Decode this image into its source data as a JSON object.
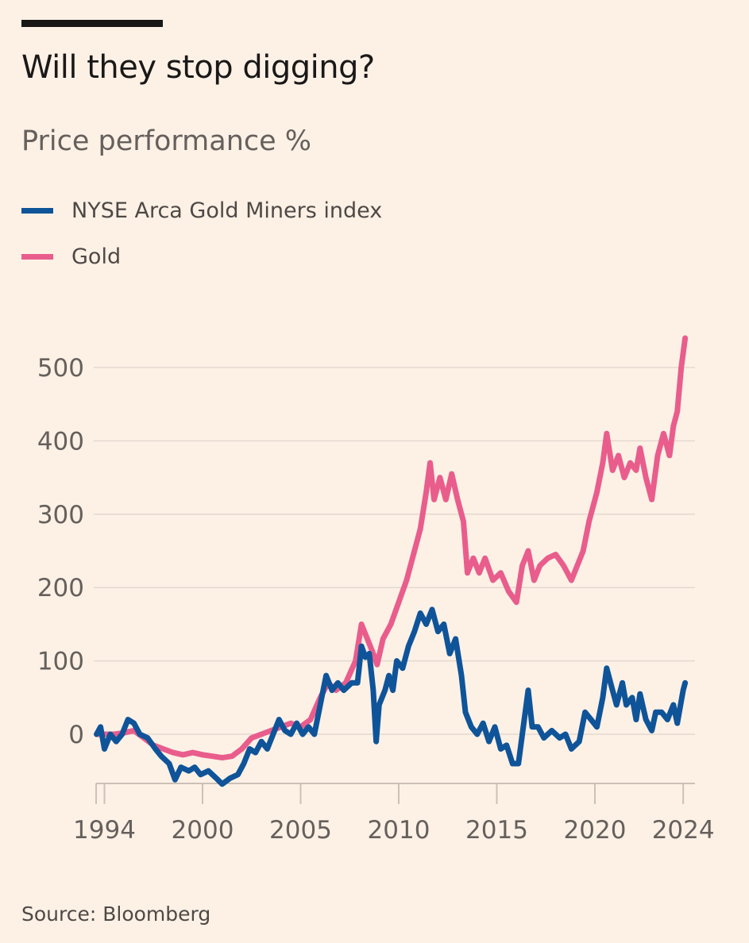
{
  "header": {
    "title": "Will they stop digging?",
    "subtitle": "Price performance %"
  },
  "source": "Source: Bloomberg",
  "colors": {
    "background": "#fdf1e6",
    "miners": "#0f5499",
    "gold": "#e95d8c",
    "grid": "#e3d9cf",
    "text": "#66605c"
  },
  "chart_data": {
    "type": "line",
    "title": "Will they stop digging?",
    "subtitle": "Price performance %",
    "xlabel": "",
    "ylabel": "Price performance %",
    "xlim": [
      1994.6,
      2025.1
    ],
    "ylim": [
      -70,
      540
    ],
    "grid": true,
    "legend_placement": "top-left",
    "y_ticks": [
      0,
      100,
      200,
      300,
      400,
      500
    ],
    "x_ticks": [
      {
        "label": "1994",
        "value": 1995.0
      },
      {
        "label": "2000",
        "value": 2000
      },
      {
        "label": "2005",
        "value": 2005
      },
      {
        "label": "2010",
        "value": 2010
      },
      {
        "label": "2015",
        "value": 2015
      },
      {
        "label": "2020",
        "value": 2020
      },
      {
        "label": "2024",
        "value": 2024.5
      }
    ],
    "series": [
      {
        "name": "NYSE Arca Gold Miners index",
        "color": "#0f5499",
        "points": [
          [
            1994.6,
            0
          ],
          [
            1994.8,
            10
          ],
          [
            1995.0,
            -20
          ],
          [
            1995.3,
            0
          ],
          [
            1995.6,
            -10
          ],
          [
            1995.9,
            0
          ],
          [
            1996.2,
            20
          ],
          [
            1996.5,
            15
          ],
          [
            1996.8,
            0
          ],
          [
            1997.2,
            -5
          ],
          [
            1997.6,
            -20
          ],
          [
            1997.9,
            -30
          ],
          [
            1998.3,
            -40
          ],
          [
            1998.6,
            -62
          ],
          [
            1998.9,
            -45
          ],
          [
            1999.3,
            -50
          ],
          [
            1999.6,
            -45
          ],
          [
            1999.9,
            -55
          ],
          [
            2000.3,
            -50
          ],
          [
            2000.7,
            -60
          ],
          [
            2001.0,
            -68
          ],
          [
            2001.4,
            -60
          ],
          [
            2001.8,
            -55
          ],
          [
            2002.1,
            -40
          ],
          [
            2002.4,
            -20
          ],
          [
            2002.7,
            -25
          ],
          [
            2003.0,
            -10
          ],
          [
            2003.3,
            -20
          ],
          [
            2003.6,
            0
          ],
          [
            2003.9,
            20
          ],
          [
            2004.2,
            5
          ],
          [
            2004.5,
            0
          ],
          [
            2004.8,
            15
          ],
          [
            2005.1,
            0
          ],
          [
            2005.4,
            10
          ],
          [
            2005.7,
            0
          ],
          [
            2006.0,
            40
          ],
          [
            2006.3,
            80
          ],
          [
            2006.6,
            60
          ],
          [
            2006.9,
            70
          ],
          [
            2007.2,
            60
          ],
          [
            2007.6,
            70
          ],
          [
            2007.9,
            70
          ],
          [
            2008.1,
            120
          ],
          [
            2008.3,
            105
          ],
          [
            2008.5,
            110
          ],
          [
            2008.7,
            60
          ],
          [
            2008.85,
            -10
          ],
          [
            2009.0,
            40
          ],
          [
            2009.3,
            60
          ],
          [
            2009.5,
            80
          ],
          [
            2009.7,
            60
          ],
          [
            2009.9,
            100
          ],
          [
            2010.2,
            90
          ],
          [
            2010.5,
            120
          ],
          [
            2010.8,
            140
          ],
          [
            2011.1,
            165
          ],
          [
            2011.4,
            150
          ],
          [
            2011.7,
            170
          ],
          [
            2012.0,
            140
          ],
          [
            2012.3,
            150
          ],
          [
            2012.6,
            110
          ],
          [
            2012.9,
            130
          ],
          [
            2013.2,
            80
          ],
          [
            2013.4,
            30
          ],
          [
            2013.7,
            10
          ],
          [
            2014.0,
            0
          ],
          [
            2014.3,
            15
          ],
          [
            2014.6,
            -10
          ],
          [
            2014.9,
            10
          ],
          [
            2015.2,
            -20
          ],
          [
            2015.5,
            -15
          ],
          [
            2015.8,
            -40
          ],
          [
            2016.1,
            -40
          ],
          [
            2016.3,
            0
          ],
          [
            2016.6,
            60
          ],
          [
            2016.8,
            10
          ],
          [
            2017.1,
            10
          ],
          [
            2017.4,
            -5
          ],
          [
            2017.8,
            5
          ],
          [
            2018.2,
            -5
          ],
          [
            2018.5,
            0
          ],
          [
            2018.8,
            -20
          ],
          [
            2019.2,
            -10
          ],
          [
            2019.5,
            30
          ],
          [
            2019.8,
            20
          ],
          [
            2020.1,
            10
          ],
          [
            2020.4,
            50
          ],
          [
            2020.6,
            90
          ],
          [
            2020.9,
            60
          ],
          [
            2021.1,
            40
          ],
          [
            2021.4,
            70
          ],
          [
            2021.6,
            40
          ],
          [
            2021.9,
            50
          ],
          [
            2022.1,
            20
          ],
          [
            2022.3,
            55
          ],
          [
            2022.6,
            20
          ],
          [
            2022.9,
            5
          ],
          [
            2023.1,
            30
          ],
          [
            2023.4,
            30
          ],
          [
            2023.7,
            20
          ],
          [
            2024.0,
            40
          ],
          [
            2024.2,
            15
          ],
          [
            2024.5,
            60
          ],
          [
            2024.6,
            70
          ]
        ]
      },
      {
        "name": "Gold",
        "color": "#e95d8c",
        "points": [
          [
            1994.6,
            0
          ],
          [
            1995.0,
            0
          ],
          [
            1995.5,
            0
          ],
          [
            1996.0,
            2
          ],
          [
            1996.5,
            5
          ],
          [
            1997.0,
            -5
          ],
          [
            1997.5,
            -15
          ],
          [
            1998.0,
            -20
          ],
          [
            1998.5,
            -25
          ],
          [
            1999.0,
            -28
          ],
          [
            1999.5,
            -25
          ],
          [
            2000.0,
            -28
          ],
          [
            2000.5,
            -30
          ],
          [
            2001.0,
            -32
          ],
          [
            2001.5,
            -30
          ],
          [
            2002.0,
            -20
          ],
          [
            2002.5,
            -5
          ],
          [
            2003.0,
            0
          ],
          [
            2003.5,
            5
          ],
          [
            2004.0,
            10
          ],
          [
            2004.5,
            15
          ],
          [
            2005.0,
            10
          ],
          [
            2005.5,
            20
          ],
          [
            2006.0,
            50
          ],
          [
            2006.4,
            70
          ],
          [
            2006.8,
            60
          ],
          [
            2007.3,
            70
          ],
          [
            2007.8,
            100
          ],
          [
            2008.1,
            150
          ],
          [
            2008.4,
            130
          ],
          [
            2008.7,
            110
          ],
          [
            2008.9,
            95
          ],
          [
            2009.2,
            130
          ],
          [
            2009.6,
            150
          ],
          [
            2010.0,
            180
          ],
          [
            2010.4,
            210
          ],
          [
            2010.8,
            250
          ],
          [
            2011.1,
            280
          ],
          [
            2011.4,
            330
          ],
          [
            2011.6,
            370
          ],
          [
            2011.8,
            320
          ],
          [
            2012.1,
            350
          ],
          [
            2012.4,
            320
          ],
          [
            2012.7,
            355
          ],
          [
            2013.0,
            320
          ],
          [
            2013.3,
            290
          ],
          [
            2013.5,
            220
          ],
          [
            2013.8,
            240
          ],
          [
            2014.1,
            220
          ],
          [
            2014.4,
            240
          ],
          [
            2014.8,
            210
          ],
          [
            2015.2,
            220
          ],
          [
            2015.6,
            195
          ],
          [
            2016.0,
            180
          ],
          [
            2016.3,
            230
          ],
          [
            2016.6,
            250
          ],
          [
            2016.9,
            210
          ],
          [
            2017.2,
            230
          ],
          [
            2017.6,
            240
          ],
          [
            2018.0,
            245
          ],
          [
            2018.4,
            230
          ],
          [
            2018.8,
            210
          ],
          [
            2019.1,
            230
          ],
          [
            2019.4,
            250
          ],
          [
            2019.7,
            290
          ],
          [
            2020.1,
            330
          ],
          [
            2020.4,
            370
          ],
          [
            2020.6,
            410
          ],
          [
            2020.9,
            360
          ],
          [
            2021.2,
            380
          ],
          [
            2021.5,
            350
          ],
          [
            2021.8,
            370
          ],
          [
            2022.1,
            360
          ],
          [
            2022.3,
            390
          ],
          [
            2022.6,
            350
          ],
          [
            2022.9,
            320
          ],
          [
            2023.2,
            380
          ],
          [
            2023.5,
            410
          ],
          [
            2023.8,
            380
          ],
          [
            2024.0,
            420
          ],
          [
            2024.2,
            440
          ],
          [
            2024.4,
            500
          ],
          [
            2024.6,
            540
          ]
        ]
      }
    ]
  }
}
